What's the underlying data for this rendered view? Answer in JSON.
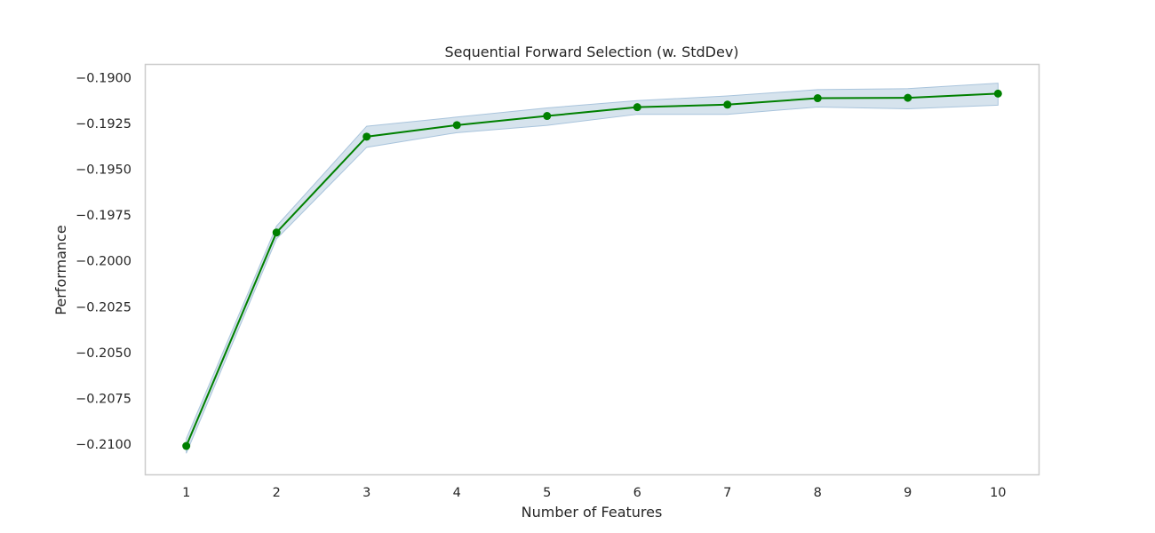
{
  "chart_data": {
    "type": "line",
    "title": "Sequential Forward Selection (w. StdDev)",
    "xlabel": "Number of Features",
    "ylabel": "Performance",
    "x": [
      1,
      2,
      3,
      4,
      5,
      6,
      7,
      8,
      9,
      10
    ],
    "y": [
      -0.2101,
      -0.19845,
      -0.19322,
      -0.19259,
      -0.19209,
      -0.19161,
      -0.19147,
      -0.19112,
      -0.1911,
      -0.19087
    ],
    "std_upper": [
      -0.2097,
      -0.1981,
      -0.19265,
      -0.19215,
      -0.19165,
      -0.19125,
      -0.191,
      -0.19065,
      -0.1906,
      -0.1903
    ],
    "std_lower": [
      -0.2105,
      -0.1988,
      -0.1938,
      -0.193,
      -0.1926,
      -0.192,
      -0.192,
      -0.1916,
      -0.1917,
      -0.1915
    ],
    "xticks": [
      "1",
      "2",
      "3",
      "4",
      "5",
      "6",
      "7",
      "8",
      "9",
      "10"
    ],
    "yticks": [
      "−0.1900",
      "−0.1925",
      "−0.1950",
      "−0.1975",
      "−0.2000",
      "−0.2025",
      "−0.2050",
      "−0.2075",
      "−0.2100"
    ],
    "ytick_values": [
      -0.19,
      -0.1925,
      -0.195,
      -0.1975,
      -0.2,
      -0.2025,
      -0.205,
      -0.2075,
      -0.21
    ],
    "xlim": [
      0.55,
      10.45
    ],
    "ylim": [
      -0.21165,
      -0.1893
    ],
    "grid": false,
    "colors": {
      "line": "#008000",
      "band_fill": "#c5d7e6",
      "band_edge": "#a9c4dc",
      "frame": "#cccccc"
    }
  }
}
